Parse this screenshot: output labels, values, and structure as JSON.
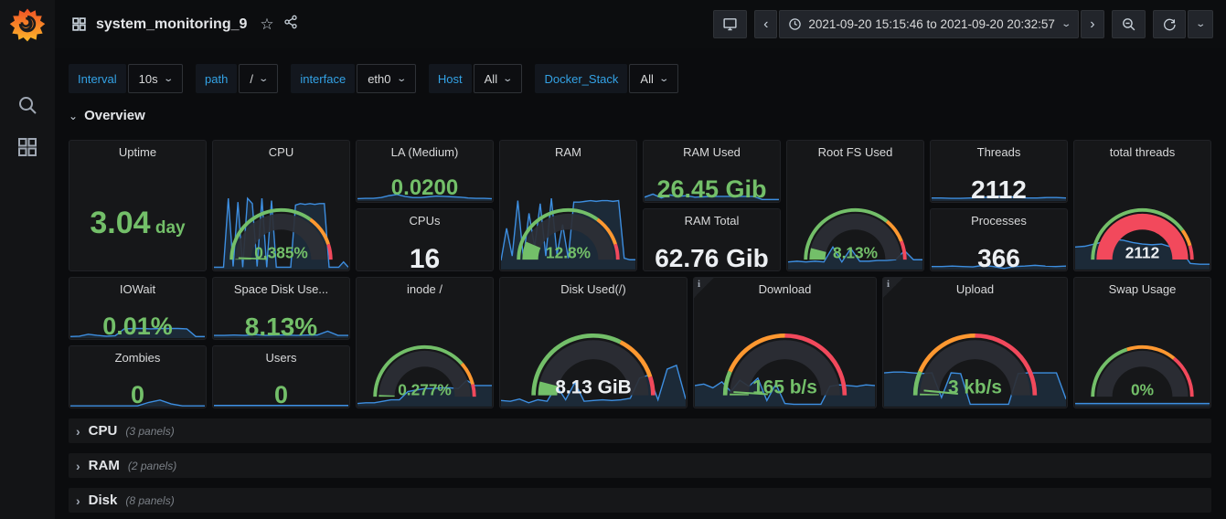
{
  "colors": {
    "green": "#73bf69",
    "orange": "#ff9830",
    "red": "#f2495c",
    "white": "#eceff2",
    "spark_line": "#3d8ee0",
    "spark_fill": "rgba(61,142,224,0.16)",
    "band": "#2c2f35",
    "accent_blue": "#33a2e5"
  },
  "sidebar": {
    "icons": [
      "grafana-logo",
      "search",
      "dashboards"
    ]
  },
  "header": {
    "title": "system_monitoring_9",
    "star_icon": "☆"
  },
  "timepicker": {
    "range": "2021-09-20 15:15:46 to 2021-09-20 20:32:57",
    "prev": "‹",
    "next": "›",
    "caret": "⌄"
  },
  "variables": [
    {
      "label": "Interval",
      "value": "10s"
    },
    {
      "label": "path",
      "value": "/"
    },
    {
      "label": "interface",
      "value": "eth0"
    },
    {
      "label": "Host",
      "value": "All"
    },
    {
      "label": "Docker_Stack",
      "value": "All"
    }
  ],
  "sections": {
    "overview_chevron": "⌄",
    "overview": "Overview"
  },
  "collapsed_rows": [
    {
      "chevron": "›",
      "title": "CPU",
      "count": "(3 panels)"
    },
    {
      "chevron": "›",
      "title": "RAM",
      "count": "(2 panels)"
    },
    {
      "chevron": "›",
      "title": "Disk",
      "count": "(8 panels)"
    }
  ],
  "panels": {
    "uptime": {
      "title": "Uptime",
      "kind": "stat",
      "value": "3.04",
      "unit": "day",
      "color": "green",
      "size": 34
    },
    "cpu": {
      "title": "CPU",
      "kind": "gauge",
      "value": "0.385%",
      "vcolor": "green",
      "fill": 0.004,
      "needle": 0.012,
      "thresholds": [
        [
          0,
          0.7,
          "green"
        ],
        [
          0.7,
          0.9,
          "orange"
        ],
        [
          0.9,
          1,
          "red"
        ]
      ],
      "spark": [
        3,
        3,
        3,
        95,
        4,
        90,
        3,
        95,
        88,
        4,
        95,
        3,
        92,
        3,
        3,
        3,
        3,
        86,
        88,
        87,
        88,
        87,
        88,
        88,
        3,
        3,
        3,
        10,
        3
      ]
    },
    "la": {
      "title": "LA (Medium)",
      "kind": "stat",
      "value": "0.0200",
      "color": "green",
      "size": 24,
      "spark": [
        6,
        7,
        7,
        9,
        14,
        17,
        12,
        9,
        9,
        11,
        13,
        12,
        11,
        10,
        8,
        7,
        7,
        6
      ]
    },
    "cpus": {
      "title": "CPUs",
      "kind": "stat",
      "value": "16",
      "color": "white",
      "size": 30
    },
    "ram": {
      "title": "RAM",
      "kind": "gauge",
      "value": "12.8%",
      "vcolor": "green",
      "fill": 0.128,
      "thresholds": [
        [
          0,
          0.7,
          "green"
        ],
        [
          0.7,
          0.9,
          "orange"
        ],
        [
          0.9,
          1,
          "red"
        ]
      ],
      "spark": [
        12,
        55,
        18,
        92,
        15,
        75,
        30,
        88,
        18,
        95,
        20,
        60,
        15,
        90,
        90,
        91,
        92,
        91,
        92,
        92,
        91,
        92,
        15,
        13,
        13
      ]
    },
    "ram_used": {
      "title": "RAM Used",
      "kind": "stat",
      "value": "26.45 Gib",
      "color": "green",
      "size": 27,
      "spark": [
        10,
        18,
        8,
        16,
        12,
        14,
        10,
        11,
        12,
        12,
        12,
        12,
        12,
        12,
        4,
        4,
        4
      ]
    },
    "ram_total": {
      "title": "RAM Total",
      "kind": "stat",
      "value": "62.76 Gib",
      "color": "white",
      "size": 28
    },
    "root_fs": {
      "title": "Root FS Used",
      "kind": "gauge",
      "value": "8.13%",
      "vcolor": "green",
      "fill": 0.081,
      "thresholds": [
        [
          0,
          0.72,
          "green"
        ],
        [
          0.72,
          0.88,
          "orange"
        ],
        [
          0.88,
          1,
          "red"
        ]
      ],
      "spark": [
        10,
        11,
        10,
        11,
        10,
        30,
        10,
        28,
        11,
        11,
        12,
        12,
        13,
        25,
        13,
        13
      ]
    },
    "threads": {
      "title": "Threads",
      "kind": "stat",
      "value": "2112",
      "color": "white",
      "size": 28,
      "spark": [
        8,
        8,
        7,
        7,
        8,
        9,
        10,
        13,
        11,
        9,
        8,
        8,
        9,
        9,
        8
      ]
    },
    "processes": {
      "title": "Processes",
      "kind": "stat",
      "value": "366",
      "color": "white",
      "size": 28,
      "spark": [
        8,
        8,
        9,
        8,
        7,
        11,
        8,
        3,
        8,
        9,
        11,
        9,
        8,
        9
      ]
    },
    "total_threads": {
      "title": "total threads",
      "kind": "gauge",
      "value": "2112",
      "vcolor": "white",
      "fill": 1,
      "fill_color": "red",
      "thresholds": [
        [
          0,
          0.8,
          "green"
        ],
        [
          0.8,
          0.91,
          "orange"
        ],
        [
          0.91,
          1,
          "red"
        ]
      ],
      "spark": [
        30,
        31,
        34,
        37,
        40,
        39,
        36,
        34,
        33,
        34,
        30,
        26,
        8,
        7,
        7
      ]
    },
    "iowait": {
      "title": "IOWait",
      "kind": "stat",
      "value": "0.01%",
      "color": "green",
      "size": 27,
      "spark": [
        4,
        5,
        10,
        7,
        5,
        6,
        24,
        25,
        25,
        24,
        25,
        25,
        25,
        24,
        4,
        4
      ]
    },
    "zombies": {
      "title": "Zombies",
      "kind": "stat",
      "value": "0",
      "color": "green",
      "size": 27,
      "spark": [
        2,
        2,
        2,
        2,
        2,
        2,
        2,
        11,
        17,
        7,
        2,
        2,
        2
      ]
    },
    "space_disk": {
      "title": "Space Disk Use...",
      "kind": "stat",
      "value": "8.13%",
      "color": "green",
      "size": 28,
      "spark": [
        7,
        7,
        8,
        7,
        9,
        7,
        8,
        8,
        7,
        8,
        8,
        18,
        7,
        7
      ]
    },
    "users": {
      "title": "Users",
      "kind": "stat",
      "value": "0",
      "color": "green",
      "size": 27,
      "spark": [
        3,
        3,
        3,
        3,
        3,
        3,
        3,
        3,
        3,
        3
      ]
    },
    "inode": {
      "title": "inode /",
      "kind": "gauge",
      "value": "0.277%",
      "vcolor": "green",
      "fill": 0.012,
      "thresholds": [
        [
          0,
          0.77,
          "green"
        ],
        [
          0.77,
          0.92,
          "orange"
        ],
        [
          0.92,
          1,
          "red"
        ]
      ],
      "spark": [
        4,
        5,
        5,
        7,
        9,
        9,
        20,
        22,
        24,
        24,
        25,
        25,
        24,
        35,
        28,
        28,
        28
      ]
    },
    "disk_used": {
      "title": "Disk Used(/)",
      "kind": "gauge",
      "value": "8.13 GiB",
      "vcolor": "white",
      "fill": 0.081,
      "thresholds": [
        [
          0,
          0.65,
          "green"
        ],
        [
          0.65,
          0.9,
          "orange"
        ],
        [
          0.9,
          1,
          "red"
        ]
      ],
      "spark": [
        8,
        7,
        10,
        5,
        9,
        7,
        28,
        9,
        32,
        7,
        8,
        9,
        8,
        9,
        11,
        38,
        42,
        9,
        50,
        55,
        10
      ]
    },
    "download": {
      "title": "Download",
      "kind": "gauge",
      "value": "165 b/s",
      "vcolor": "green",
      "info": true,
      "fill": 0.01,
      "needle": 0.02,
      "thresholds": [
        [
          0,
          0.13,
          "green"
        ],
        [
          0.13,
          0.5,
          "orange"
        ],
        [
          0.5,
          1,
          "red"
        ]
      ],
      "spark": [
        28,
        30,
        25,
        33,
        20,
        35,
        27,
        38,
        8,
        30,
        4,
        3,
        3,
        3,
        3,
        27,
        29,
        28,
        27,
        29,
        28
      ]
    },
    "upload": {
      "title": "Upload",
      "kind": "gauge",
      "value": "3 kb/s",
      "vcolor": "green",
      "info": true,
      "fill": 0.01,
      "needle": 0.03,
      "thresholds": [
        [
          0,
          0.13,
          "green"
        ],
        [
          0.13,
          0.5,
          "orange"
        ],
        [
          0.5,
          1,
          "red"
        ]
      ],
      "spark": [
        45,
        46,
        46,
        45,
        44,
        45,
        12,
        45,
        44,
        3,
        3,
        3,
        3,
        3,
        44,
        45,
        45,
        45,
        45,
        10
      ]
    },
    "swap": {
      "title": "Swap Usage",
      "kind": "gauge",
      "value": "0%",
      "vcolor": "green",
      "fill": 0,
      "thresholds": [
        [
          0,
          0.4,
          "green"
        ],
        [
          0.4,
          0.72,
          "orange"
        ],
        [
          0.72,
          1,
          "red"
        ]
      ],
      "spark": [
        4,
        4,
        4,
        4,
        4,
        4,
        4,
        4
      ]
    }
  }
}
